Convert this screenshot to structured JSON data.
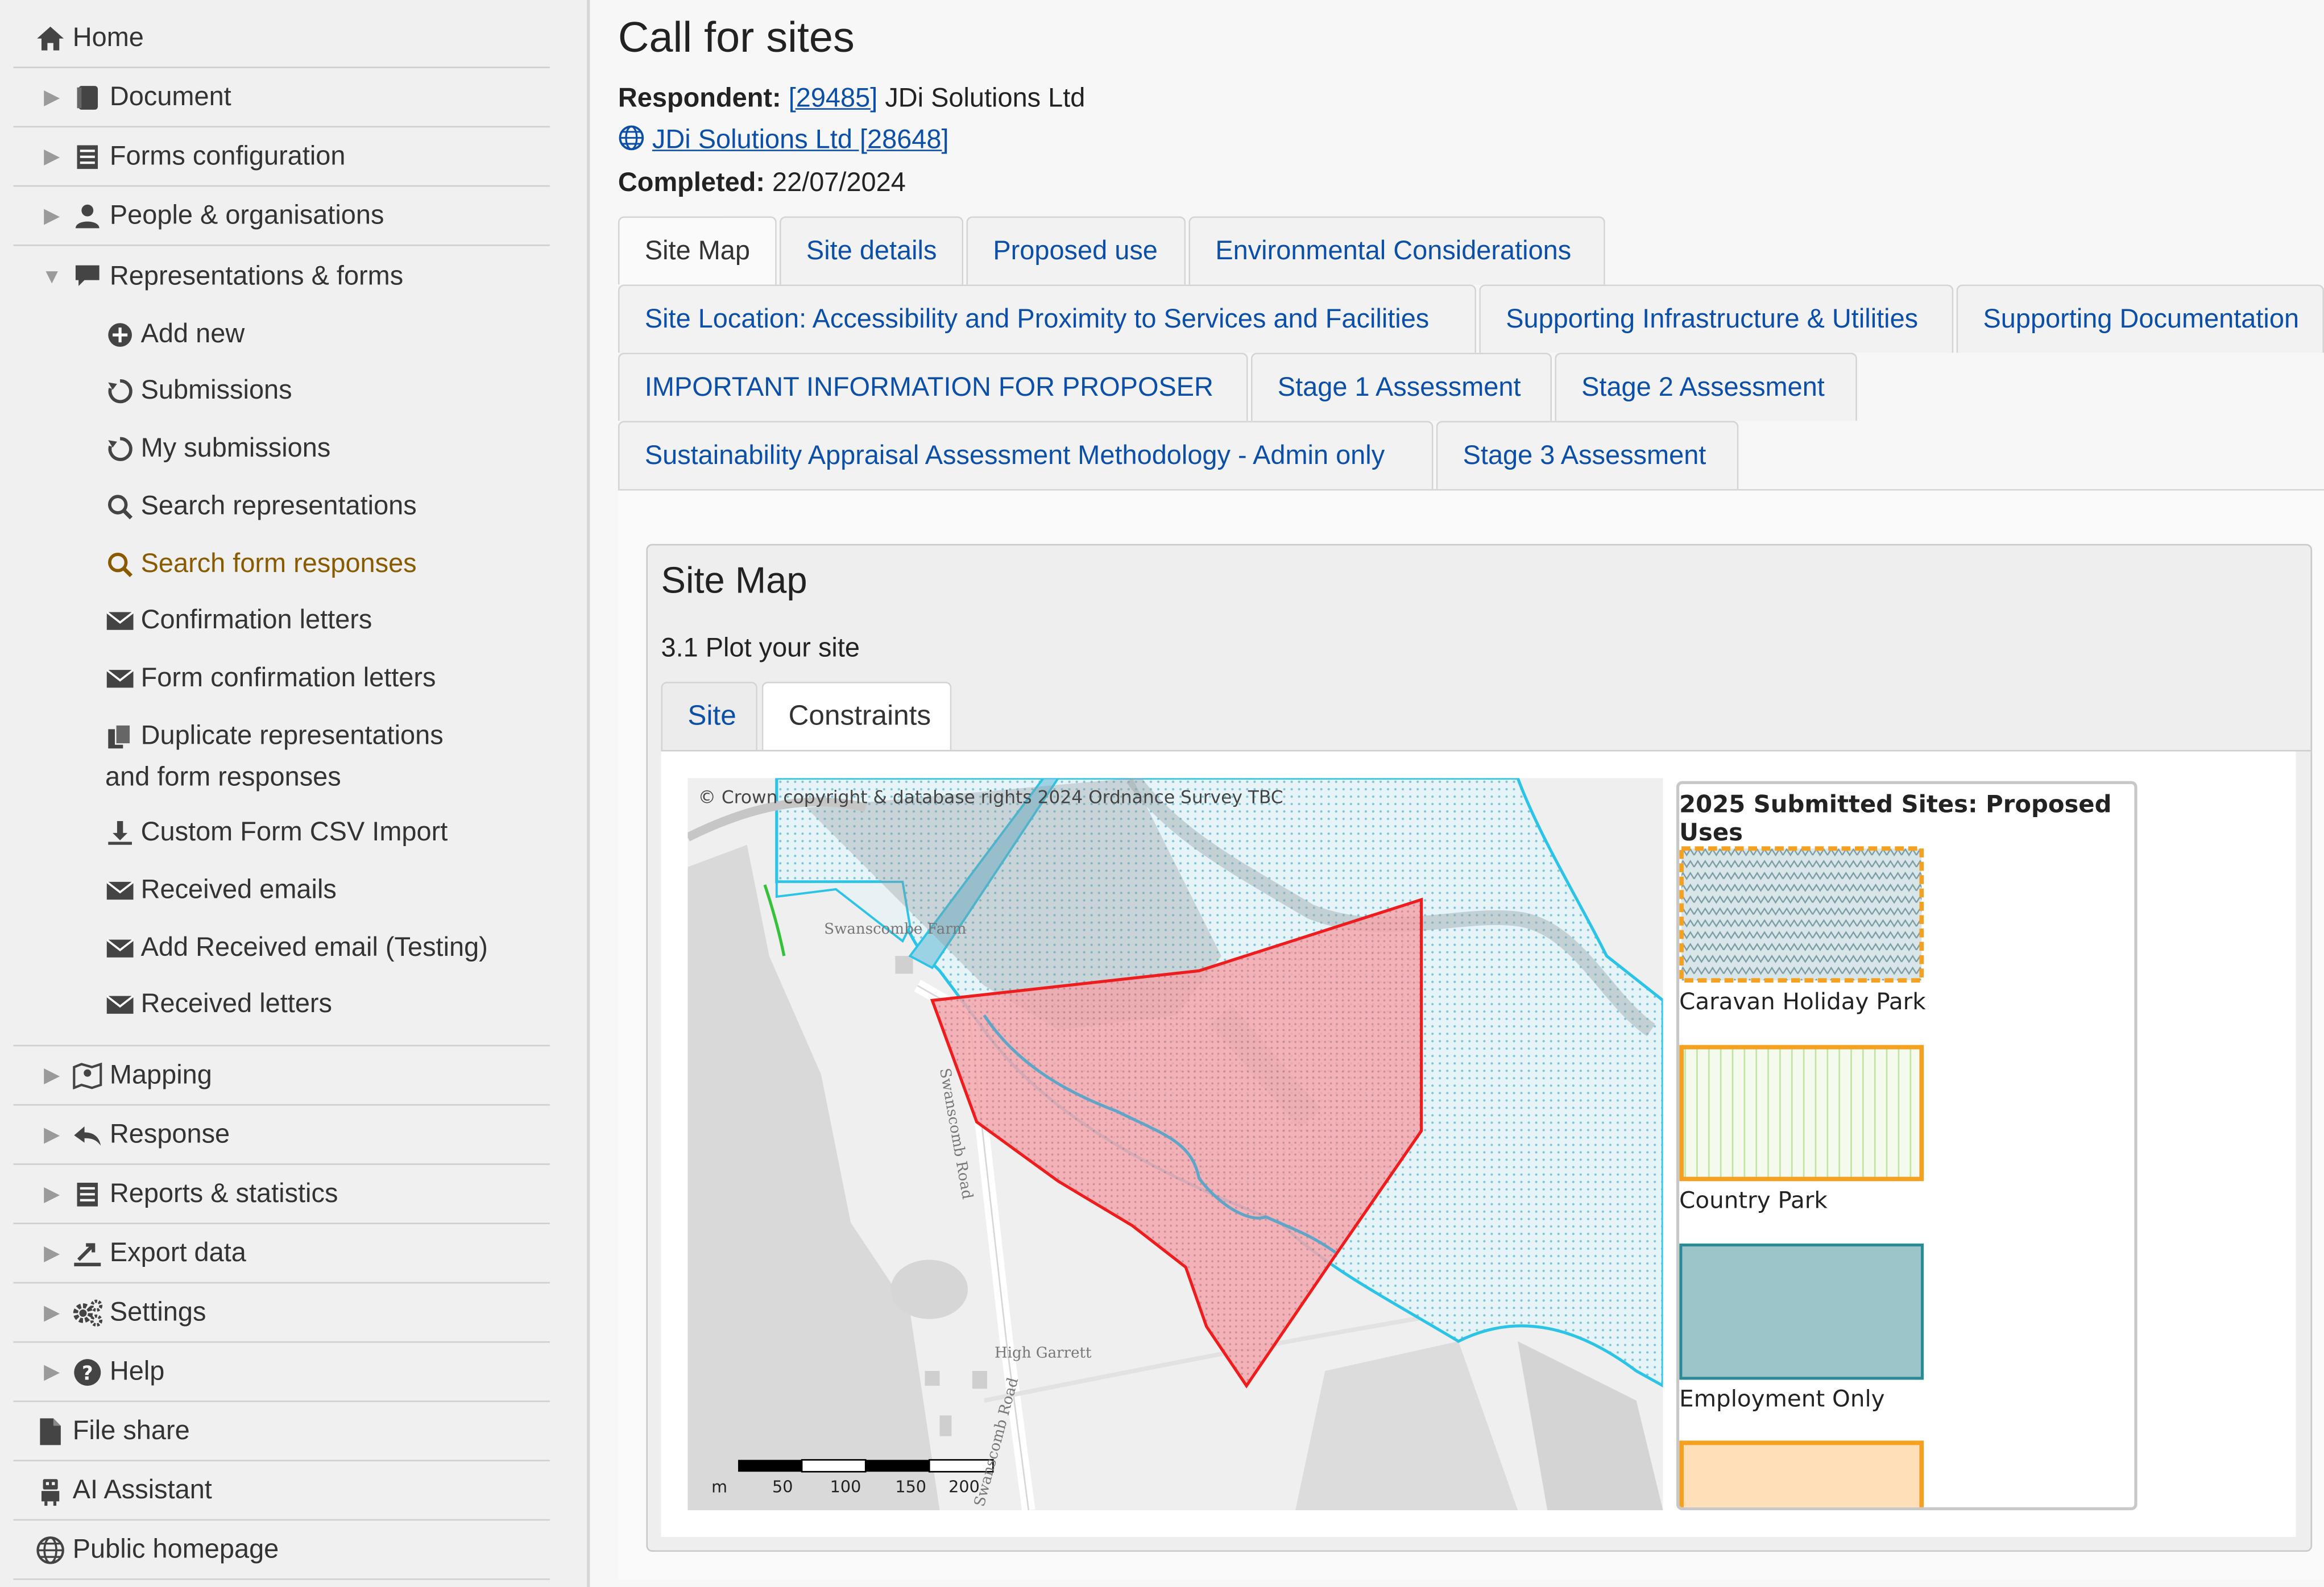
{
  "sidebar": {
    "home": "Home",
    "items": [
      {
        "label": "Document"
      },
      {
        "label": "Forms configuration"
      },
      {
        "label": "People & organisations"
      },
      {
        "label": "Representations & forms"
      }
    ],
    "sub_items": [
      {
        "label": "Add new"
      },
      {
        "label": "Submissions"
      },
      {
        "label": "My submissions"
      },
      {
        "label": "Search representations"
      },
      {
        "label": "Search form responses"
      },
      {
        "label": "Confirmation letters"
      },
      {
        "label": "Form confirmation letters"
      },
      {
        "label": "Duplicate representations and form responses"
      },
      {
        "label": "Custom Form CSV Import"
      },
      {
        "label": "Received emails"
      },
      {
        "label": "Add Received email (Testing)"
      },
      {
        "label": "Received letters"
      }
    ],
    "lower_items": [
      {
        "label": "Mapping"
      },
      {
        "label": "Response"
      },
      {
        "label": "Reports & statistics"
      },
      {
        "label": "Export data"
      },
      {
        "label": "Settings"
      },
      {
        "label": "Help"
      },
      {
        "label": "File share"
      },
      {
        "label": "AI Assistant"
      },
      {
        "label": "Public homepage"
      }
    ]
  },
  "header": {
    "title": "Call for sites",
    "respondent_label": "Respondent:",
    "respondent_id": "[29485]",
    "respondent_name": "JDi Solutions Ltd",
    "org_link": "JDi Solutions Ltd [28648]",
    "completed_label": "Completed:",
    "completed_date": "22/07/2024"
  },
  "tabs": [
    {
      "label": "Site Map"
    },
    {
      "label": "Site details"
    },
    {
      "label": "Proposed use"
    },
    {
      "label": "Environmental Considerations"
    },
    {
      "label": "Site Location: Accessibility and Proximity to Services and Facilities"
    },
    {
      "label": "Supporting Infrastructure & Utilities"
    },
    {
      "label": "Supporting Documentation"
    },
    {
      "label": "IMPORTANT INFORMATION FOR PROPOSER"
    },
    {
      "label": "Stage 1 Assessment"
    },
    {
      "label": "Stage 2 Assessment"
    },
    {
      "label": "Sustainability Appraisal Assessment Methodology - Admin only"
    },
    {
      "label": "Stage 3 Assessment"
    }
  ],
  "panel": {
    "title": "Site Map",
    "question": "3.1 Plot your site",
    "subtabs": [
      {
        "label": "Site"
      },
      {
        "label": "Constraints"
      }
    ]
  },
  "map": {
    "copyright": "© Crown copyright & database rights 2024 Ordnance Survey TBC",
    "places": [
      "Swanscombe Farm",
      "Swanscomb Road",
      "High Garrett",
      "Swanscomb Road"
    ],
    "scale": {
      "unit": "m",
      "ticks": [
        "50",
        "100",
        "150",
        "200"
      ]
    },
    "colors": {
      "site_outline": "#ee1c1c",
      "site_fill": "#f4a7ad",
      "water": "#2bc3e6"
    }
  },
  "legend": {
    "title": "2025 Submitted Sites: Proposed Uses",
    "items": [
      {
        "label": "Caravan Holiday Park",
        "stroke": "#f4a020",
        "fill": "#9bb7bb"
      },
      {
        "label": "Country Park",
        "stroke": "#f4a020",
        "fill": "#e7f5d9"
      },
      {
        "label": "Employment Only",
        "stroke": "#2a8a96",
        "fill": "#9bc5c8"
      },
      {
        "label": "",
        "stroke": "#f4a020",
        "fill": "#ffdfb8"
      }
    ]
  }
}
